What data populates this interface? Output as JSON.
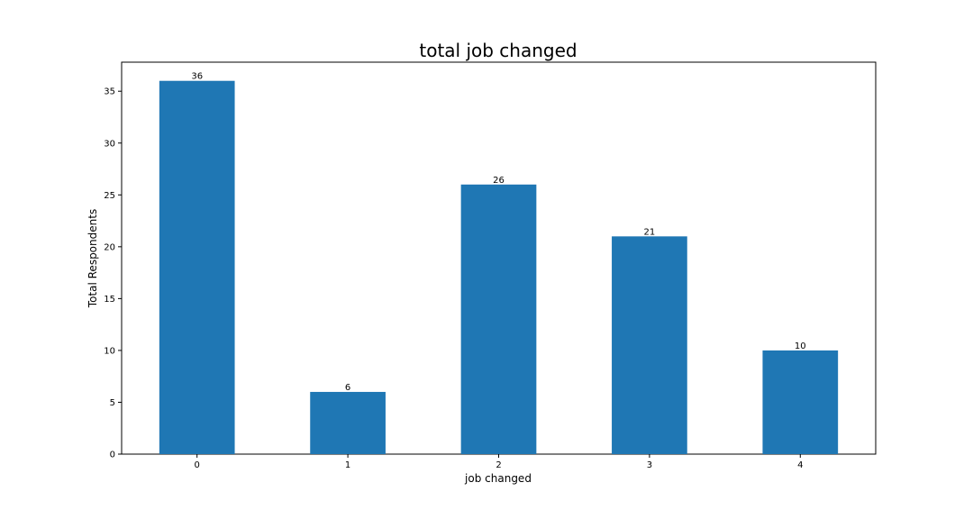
{
  "chart_data": {
    "type": "bar",
    "title": "total job changed",
    "xlabel": "job changed",
    "ylabel": "Total Respondents",
    "categories": [
      "0",
      "1",
      "2",
      "3",
      "4"
    ],
    "values": [
      36,
      6,
      26,
      21,
      10
    ],
    "data_labels": [
      "36",
      "6",
      "26",
      "21",
      "10"
    ],
    "ylim": [
      0,
      37.8
    ],
    "yticks": [
      0,
      5,
      10,
      15,
      20,
      25,
      30,
      35
    ],
    "ytick_labels": [
      "0",
      "5",
      "10",
      "15",
      "20",
      "25",
      "30",
      "35"
    ],
    "bar_color": "#1f77b4",
    "grid": false,
    "legend": "none"
  }
}
